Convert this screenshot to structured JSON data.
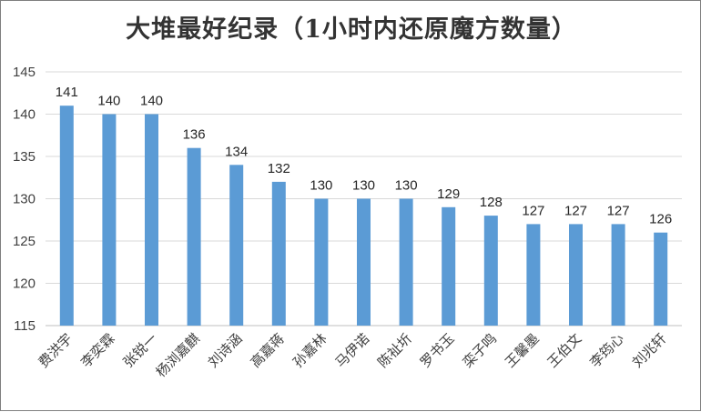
{
  "chart_data": {
    "type": "bar",
    "title": "大堆最好纪录（1小时内还原魔方数量）",
    "xlabel": "",
    "ylabel": "",
    "ylim": [
      115,
      145
    ],
    "yticks": [
      115,
      120,
      125,
      130,
      135,
      140,
      145
    ],
    "grid": true,
    "legend": "none",
    "bar_color": "#5b9bd5",
    "categories": [
      "费洪宇",
      "李奕霖",
      "张锐一",
      "杨浏嘉麒",
      "刘诗涵",
      "高嘉蒋",
      "孙嘉林",
      "马伊诺",
      "陈祉圻",
      "罗书玉",
      "栾子鸣",
      "王馨墨",
      "王伯文",
      "李筠心",
      "刘兆轩"
    ],
    "values": [
      141,
      140,
      140,
      136,
      134,
      132,
      130,
      130,
      130,
      129,
      128,
      127,
      127,
      127,
      126
    ]
  }
}
